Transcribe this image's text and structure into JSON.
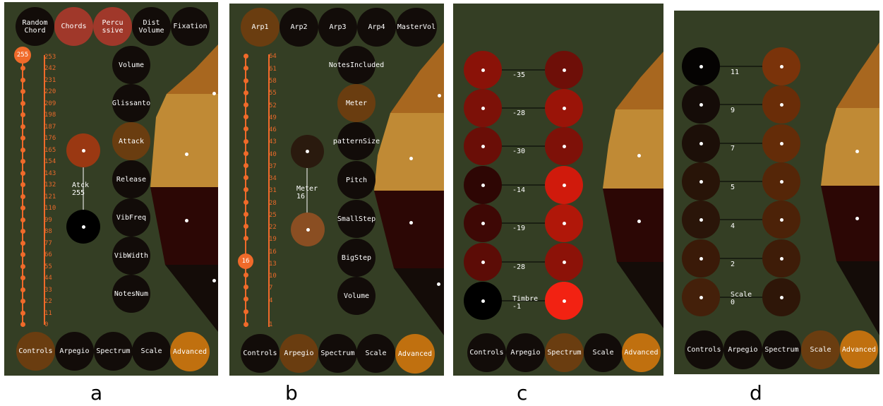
{
  "panel_a": {
    "top_buttons": [
      "Random\nChord",
      "Chords",
      "Percu\nssive",
      "Dist\nVolume",
      "Fixation"
    ],
    "slider_value": "255",
    "slider_ticks": [
      "253",
      "242",
      "231",
      "220",
      "209",
      "198",
      "187",
      "176",
      "165",
      "154",
      "143",
      "132",
      "121",
      "110",
      "99",
      "88",
      "77",
      "66",
      "55",
      "44",
      "33",
      "22",
      "11",
      "0"
    ],
    "params": [
      "Volume",
      "Glissanto",
      "Attack",
      "Release",
      "VibFreq",
      "VibWidth",
      "NotesNum"
    ],
    "knob_label": "Atck\n255",
    "bottom_buttons": [
      "Controls",
      "Arpegio",
      "Spectrum",
      "Scale",
      "Advanced"
    ],
    "caption": "a"
  },
  "panel_b": {
    "top_buttons": [
      "Arp1",
      "Arp2",
      "Arp3",
      "Arp4",
      "MasterVol"
    ],
    "slider_value": "16",
    "slider_ticks": [
      "64",
      "61",
      "58",
      "55",
      "52",
      "49",
      "46",
      "43",
      "40",
      "37",
      "34",
      "31",
      "28",
      "25",
      "22",
      "19",
      "16",
      "13",
      "10",
      "7",
      "4",
      "1"
    ],
    "params": [
      "NotesIncluded",
      "Meter",
      "patternSize",
      "Pitch",
      "SmallStep",
      "BigStep",
      "Volume"
    ],
    "knob_label": "Meter\n16",
    "bottom_buttons": [
      "Controls",
      "Arpegio",
      "Spectrum",
      "Scale",
      "Advanced"
    ],
    "caption": "b"
  },
  "panel_c": {
    "rows": [
      "-35",
      "-28",
      "-30",
      "-14",
      "-19",
      "-28",
      "Timbre\n-1"
    ],
    "bottom_buttons": [
      "Controls",
      "Arpegio",
      "Spectrum",
      "Scale",
      "Advanced"
    ],
    "caption": "c"
  },
  "panel_d": {
    "rows": [
      "11",
      "9",
      "7",
      "5",
      "4",
      "2",
      "Scale\n0"
    ],
    "bottom_buttons": [
      "Controls",
      "Arpegio",
      "Spectrum",
      "Scale",
      "Advanced"
    ],
    "caption": "d"
  },
  "colors": {
    "background": "#343e24",
    "slider": "#f06a2a",
    "dark_button": "#120c09",
    "active_brown": "#6a3d10",
    "advanced": "#c0700f",
    "wedge_top": "#a8671f",
    "wedge_mid": "#c08a35",
    "wedge_red": "#2c0705",
    "wedge_dark": "#140c08"
  }
}
